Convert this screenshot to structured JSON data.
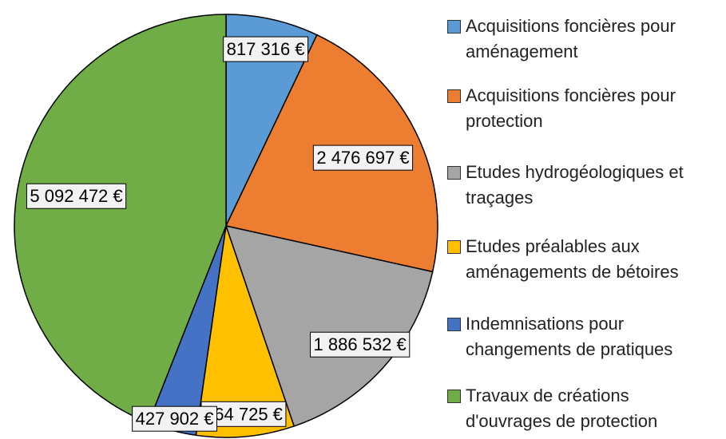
{
  "chart_data": {
    "type": "pie",
    "categories": [
      "Acquisitions foncières pour aménagement",
      "Acquisitions foncières pour protection",
      "Etudes hydrogéologiques et traçages",
      "Etudes préalables aux aménagements de bétoires",
      "Indemnisations pour changements de pratiques",
      "Travaux de créations d'ouvrages de protection"
    ],
    "values": [
      817316,
      2476697,
      1886532,
      864725,
      427902,
      5092472
    ],
    "value_labels": [
      "817 316 €",
      "2 476 697 €",
      "1 886 532 €",
      "864 725 €",
      "427 902 €",
      "5 092 472 €"
    ],
    "colors": [
      "#5b9bd5",
      "#ed7d31",
      "#a5a5a5",
      "#ffc000",
      "#4472c4",
      "#70ad47"
    ]
  }
}
